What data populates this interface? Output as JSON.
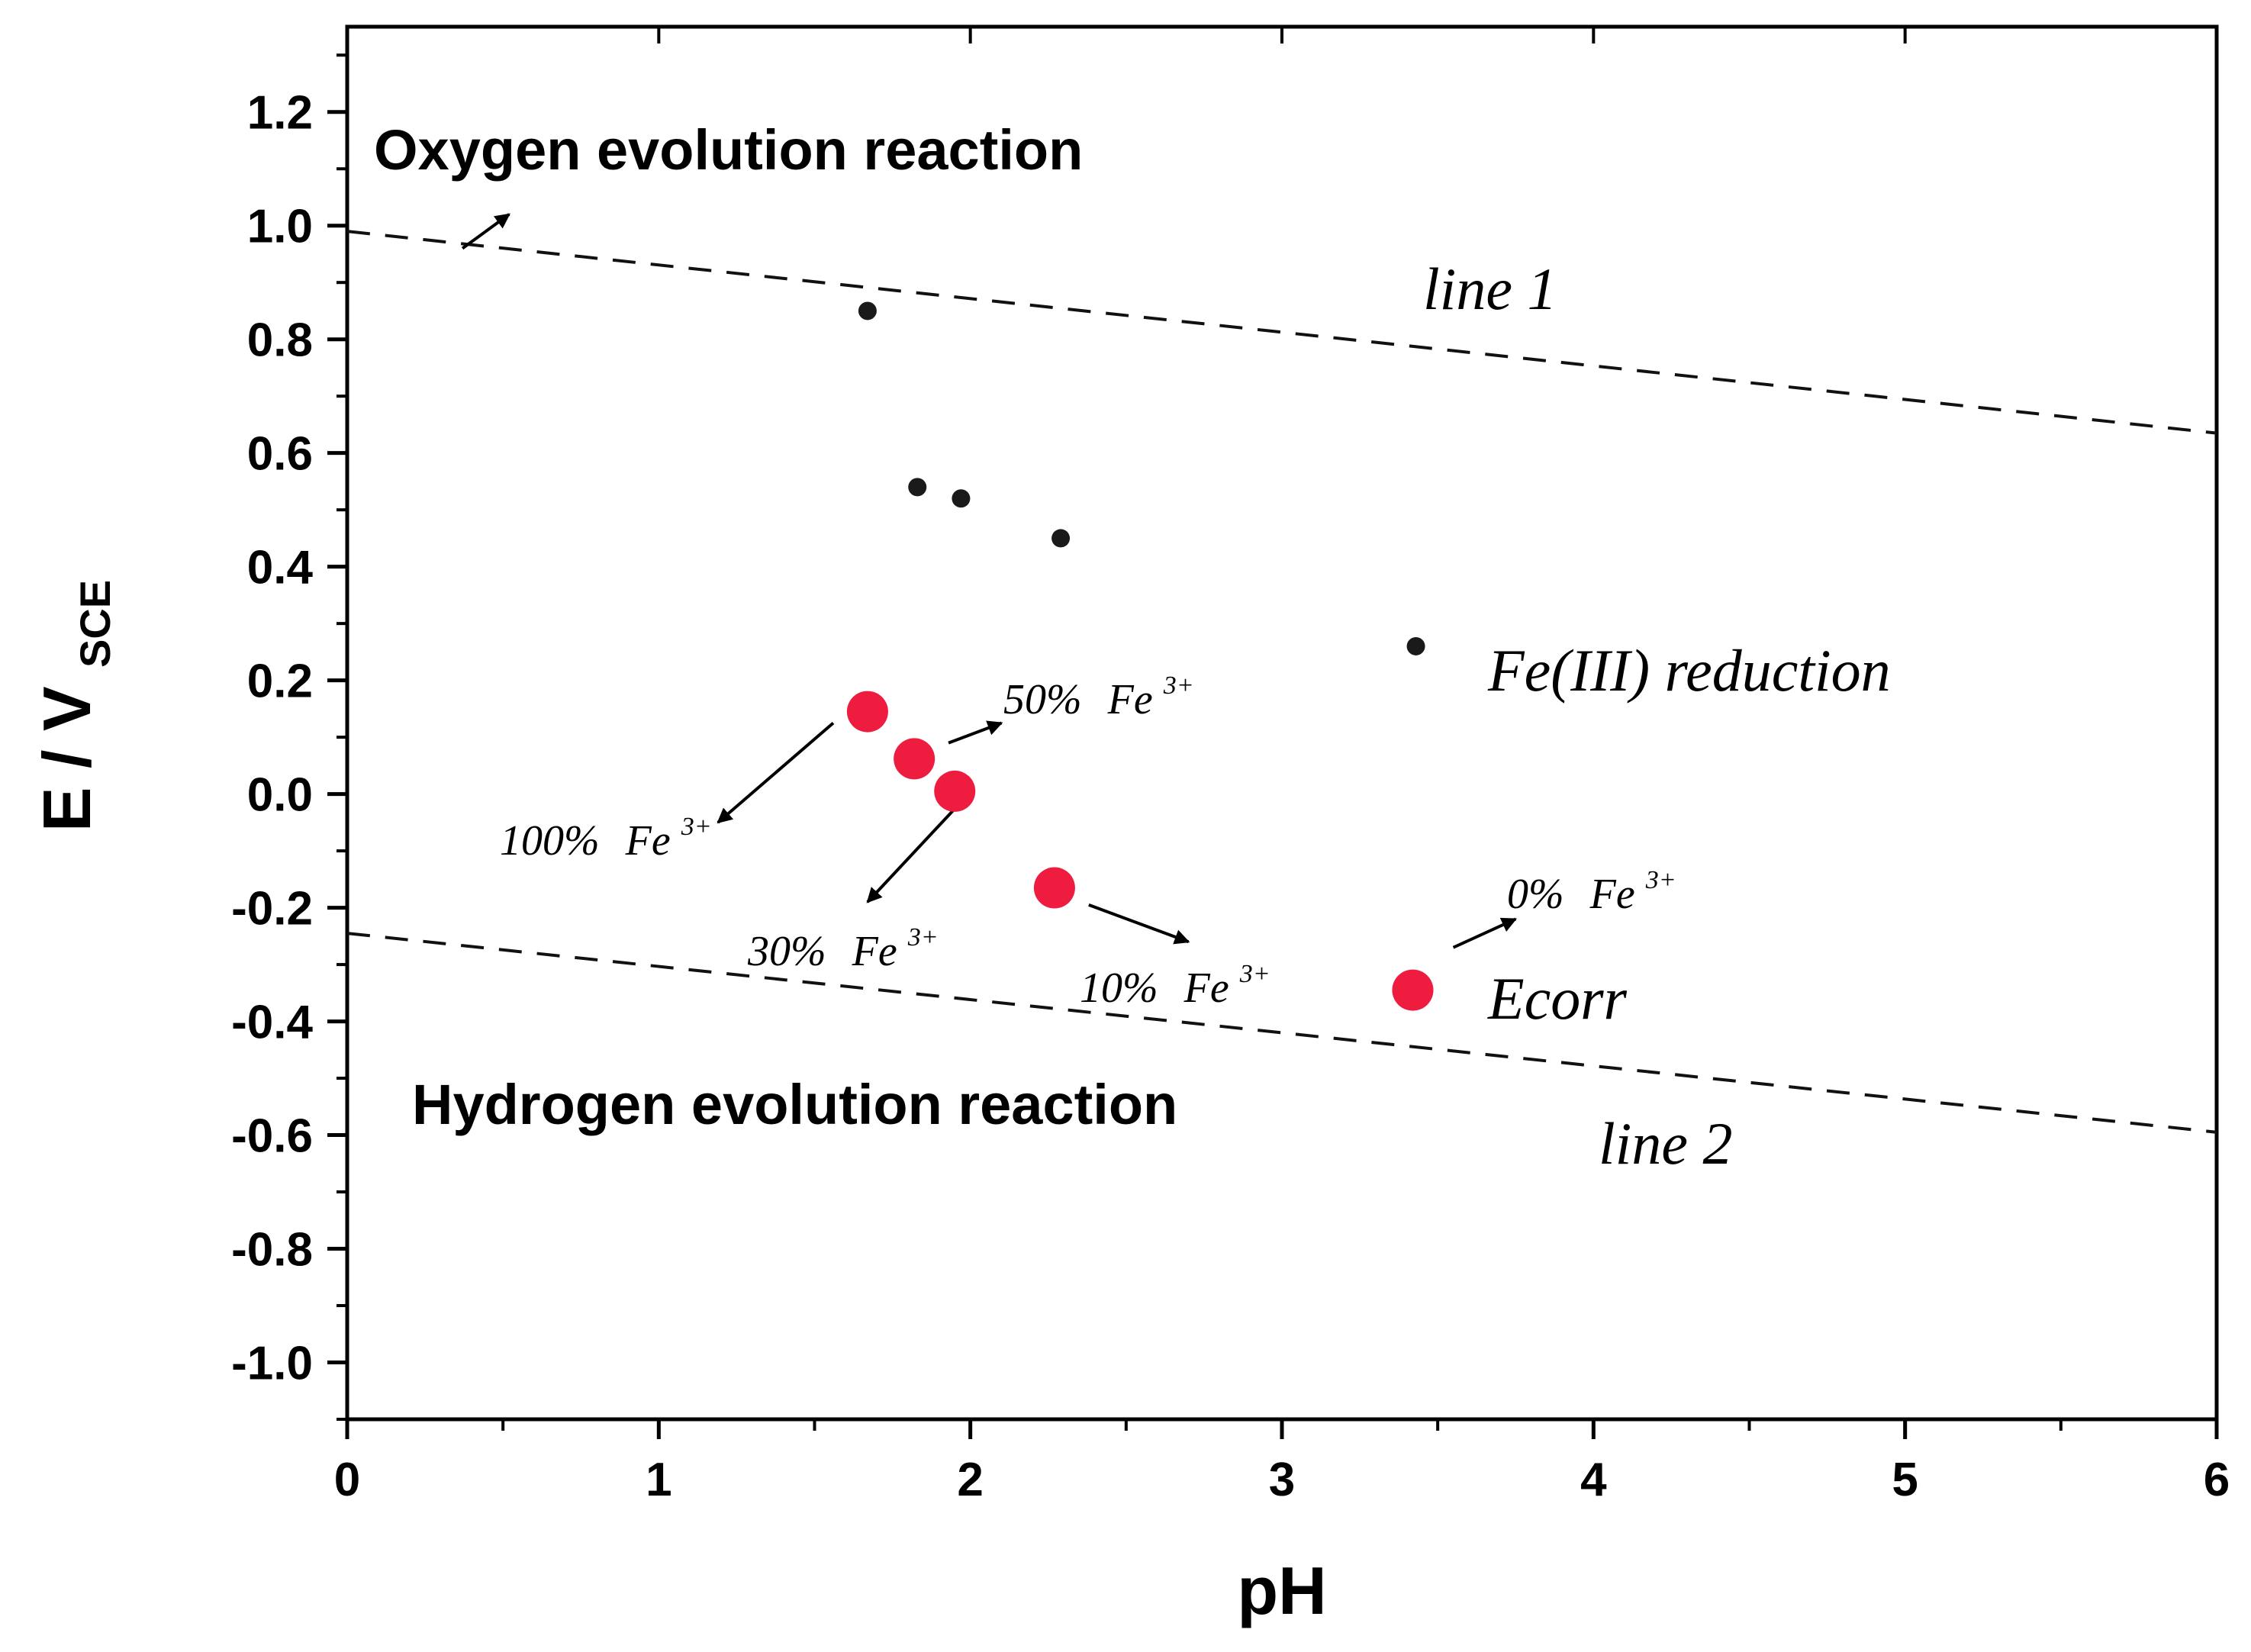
{
  "chart_data": {
    "type": "scatter",
    "title": "",
    "xlabel": "pH",
    "ylabel_main": "E / V",
    "ylabel_sub": "SCE",
    "xlim": [
      0,
      6
    ],
    "ylim": [
      -1.1,
      1.35
    ],
    "x_ticks": [
      0,
      1,
      2,
      3,
      4,
      5,
      6
    ],
    "x_tick_labels": [
      "0",
      "1",
      "2",
      "3",
      "4",
      "5",
      "6"
    ],
    "y_ticks": [
      -1.0,
      -0.8,
      -0.6,
      -0.4,
      -0.2,
      0.0,
      0.2,
      0.4,
      0.6,
      0.8,
      1.0,
      1.2
    ],
    "y_tick_labels": [
      "-1.0",
      "-0.8",
      "-0.6",
      "-0.4",
      "-0.2",
      "0.0",
      "0.2",
      "0.4",
      "0.6",
      "0.8",
      "1.0",
      "1.2"
    ],
    "grid": false,
    "series": [
      {
        "name": "Fe(III) reduction",
        "color": "#1a1a1a",
        "marker": "small-circle",
        "x": [
          1.67,
          1.83,
          1.97,
          2.29,
          3.43
        ],
        "y": [
          0.85,
          0.54,
          0.52,
          0.45,
          0.26
        ]
      },
      {
        "name": "Ecorr",
        "color": "#ee1c3e",
        "marker": "large-circle",
        "x": [
          1.67,
          1.82,
          1.95,
          2.27,
          3.42
        ],
        "y": [
          0.145,
          0.062,
          0.005,
          -0.165,
          -0.345
        ],
        "point_labels": [
          "100% Fe³⁺",
          "50% Fe³⁺",
          "30% Fe³⁺",
          "10% Fe³⁺",
          "0% Fe³⁺"
        ]
      }
    ],
    "lines": [
      {
        "name": "line 1",
        "style": "dashed",
        "x": [
          0,
          6
        ],
        "y": [
          0.99,
          0.635
        ]
      },
      {
        "name": "line 2",
        "style": "dashed",
        "x": [
          0,
          6
        ],
        "y": [
          -0.245,
          -0.595
        ]
      }
    ],
    "annotations": {
      "oxygen": "Oxygen evolution reaction",
      "hydrogen": "Hydrogen evolution reaction",
      "line1": "line 1",
      "line2": "line 2",
      "fe3_reduction": "Fe(III) reduction",
      "ecorr": "Ecorr"
    },
    "point_label_parts": [
      {
        "pct": "100%",
        "ion": "Fe",
        "charge": "3+"
      },
      {
        "pct": "50%",
        "ion": "Fe",
        "charge": "3+"
      },
      {
        "pct": "30%",
        "ion": "Fe",
        "charge": "3+"
      },
      {
        "pct": "10%",
        "ion": "Fe",
        "charge": "3+"
      },
      {
        "pct": "0%",
        "ion": "Fe",
        "charge": "3+"
      }
    ]
  }
}
